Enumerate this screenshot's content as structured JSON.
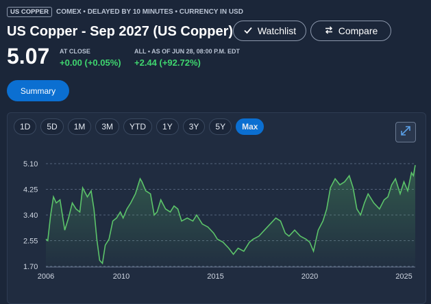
{
  "header": {
    "badge": "US COPPER",
    "meta": "COMEX • DELAYED BY 10 MINUTES • CURRENCY IN USD",
    "title": "US Copper - Sep 2027 (US Copper)",
    "watchlist_label": "Watchlist",
    "compare_label": "Compare"
  },
  "quote": {
    "price": "5.07",
    "close_label": "AT CLOSE",
    "close_change": "+0.00 (+0.05%)",
    "all_label": "ALL • AS OF JUN 28, 08:00 P.M. EDT",
    "all_change": "+2.44 (+92.72%)"
  },
  "summary_label": "Summary",
  "ranges": [
    "1D",
    "5D",
    "1M",
    "3M",
    "YTD",
    "1Y",
    "3Y",
    "5Y",
    "Max"
  ],
  "active_range": "Max",
  "colors": {
    "line": "#5cc46a",
    "accent": "#0b6fd1",
    "positive": "#3fd66f"
  },
  "icons": {
    "watchlist": "checkmark-icon",
    "compare": "swap-arrows-icon",
    "expand": "expand-diagonal-icon"
  },
  "chart_data": {
    "type": "area",
    "title": "",
    "xlabel": "",
    "ylabel": "",
    "ylim": [
      1.7,
      5.1
    ],
    "yticks": [
      "5.10",
      "4.25",
      "3.40",
      "2.55",
      "1.70"
    ],
    "xlim": [
      2006.0,
      2025.6
    ],
    "xticks": [
      "2006",
      "2010",
      "2015",
      "2020",
      "2025"
    ],
    "grid": true,
    "legend": "none",
    "x": [
      2006.0,
      2006.1,
      2006.25,
      2006.4,
      2006.55,
      2006.75,
      2007.0,
      2007.2,
      2007.4,
      2007.6,
      2007.8,
      2007.95,
      2008.2,
      2008.4,
      2008.55,
      2008.7,
      2008.85,
      2009.0,
      2009.15,
      2009.35,
      2009.55,
      2009.75,
      2009.95,
      2010.1,
      2010.3,
      2010.5,
      2010.75,
      2011.0,
      2011.1,
      2011.3,
      2011.55,
      2011.75,
      2011.9,
      2012.1,
      2012.35,
      2012.6,
      2012.8,
      2013.0,
      2013.2,
      2013.5,
      2013.8,
      2014.0,
      2014.3,
      2014.6,
      2014.9,
      2015.1,
      2015.4,
      2015.7,
      2015.95,
      2016.2,
      2016.5,
      2016.8,
      2017.0,
      2017.3,
      2017.6,
      2017.9,
      2018.2,
      2018.45,
      2018.7,
      2018.9,
      2019.2,
      2019.5,
      2019.8,
      2020.0,
      2020.2,
      2020.45,
      2020.7,
      2020.9,
      2021.1,
      2021.35,
      2021.6,
      2021.85,
      2022.1,
      2022.3,
      2022.5,
      2022.7,
      2022.9,
      2023.1,
      2023.4,
      2023.7,
      2023.95,
      2024.15,
      2024.35,
      2024.55,
      2024.8,
      2025.0,
      2025.2,
      2025.4,
      2025.5,
      2025.6
    ],
    "y": [
      2.6,
      2.55,
      3.4,
      4.0,
      3.8,
      3.9,
      2.9,
      3.3,
      3.8,
      3.6,
      3.5,
      4.3,
      4.0,
      4.2,
      3.6,
      2.6,
      1.9,
      1.8,
      2.4,
      2.6,
      3.2,
      3.3,
      3.5,
      3.3,
      3.6,
      3.8,
      4.1,
      4.6,
      4.5,
      4.2,
      4.1,
      3.4,
      3.5,
      3.9,
      3.6,
      3.5,
      3.7,
      3.6,
      3.2,
      3.3,
      3.2,
      3.4,
      3.1,
      3.0,
      2.8,
      2.6,
      2.5,
      2.3,
      2.1,
      2.3,
      2.2,
      2.5,
      2.6,
      2.7,
      2.9,
      3.1,
      3.3,
      3.2,
      2.8,
      2.7,
      2.9,
      2.7,
      2.6,
      2.5,
      2.2,
      2.9,
      3.2,
      3.6,
      4.3,
      4.6,
      4.4,
      4.5,
      4.7,
      4.3,
      3.6,
      3.4,
      3.8,
      4.1,
      3.8,
      3.6,
      3.9,
      4.0,
      4.4,
      4.6,
      4.1,
      4.5,
      4.2,
      4.8,
      4.7,
      5.05
    ]
  }
}
